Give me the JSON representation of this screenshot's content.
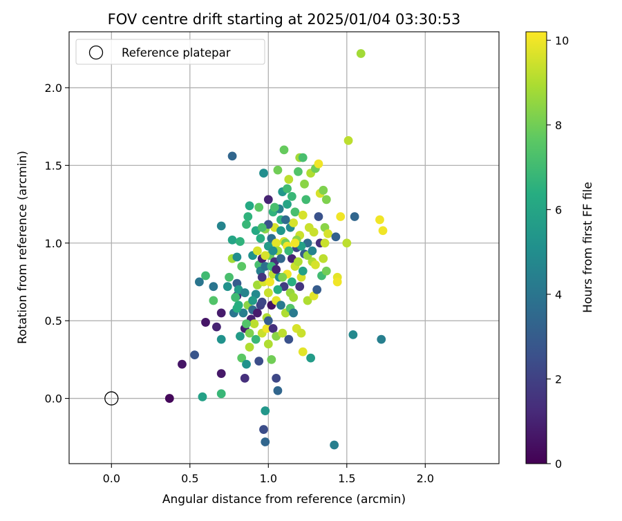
{
  "chart_data": {
    "type": "scatter",
    "title": "FOV centre drift starting at 2025/01/04 03:30:53",
    "xlabel": "Angular distance from reference (arcmin)",
    "ylabel": "Rotation from reference (arcmin)",
    "xlim": [
      -0.27,
      2.47
    ],
    "ylim": [
      -0.42,
      2.36
    ],
    "xticks": [
      0.0,
      0.5,
      1.0,
      1.5,
      2.0
    ],
    "xtick_labels": [
      "0.0",
      "0.5",
      "1.0",
      "1.5",
      "2.0"
    ],
    "yticks": [
      0.0,
      0.5,
      1.0,
      1.5,
      2.0
    ],
    "ytick_labels": [
      "0.0",
      "0.5",
      "1.0",
      "1.5",
      "2.0"
    ],
    "grid": true,
    "legend": {
      "placement": "top-left",
      "entries": [
        "Reference platepar"
      ]
    },
    "reference_point": {
      "name": "Reference platepar",
      "x": 0.0,
      "y": 0.0
    },
    "colorbar": {
      "label": "Hours from first FF file",
      "min": 0,
      "max": 10.2,
      "colormap": "viridis",
      "ticks": [
        0,
        2,
        4,
        6,
        8,
        10
      ],
      "tick_labels": [
        "0",
        "2",
        "4",
        "6",
        "8",
        "10"
      ]
    },
    "points": [
      [
        0.37,
        0.0,
        0.2
      ],
      [
        0.45,
        0.22,
        0.6
      ],
      [
        0.53,
        0.28,
        2.7
      ],
      [
        0.6,
        0.49,
        0.6
      ],
      [
        0.67,
        0.46,
        1.0
      ],
      [
        0.7,
        0.55,
        0.8
      ],
      [
        0.7,
        0.16,
        0.7
      ],
      [
        0.58,
        0.01,
        5.8
      ],
      [
        0.7,
        0.03,
        6.8
      ],
      [
        0.56,
        0.75,
        4.0
      ],
      [
        0.6,
        0.79,
        7.0
      ],
      [
        0.65,
        0.63,
        7.4
      ],
      [
        0.65,
        0.72,
        4.0
      ],
      [
        0.7,
        1.11,
        4.6
      ],
      [
        0.7,
        0.38,
        5.2
      ],
      [
        0.74,
        0.72,
        5.2
      ],
      [
        0.75,
        0.78,
        7.2
      ],
      [
        0.77,
        0.9,
        8.8
      ],
      [
        0.77,
        1.56,
        3.4
      ],
      [
        0.77,
        1.02,
        6.0
      ],
      [
        0.78,
        0.55,
        4.0
      ],
      [
        0.8,
        0.91,
        5.0
      ],
      [
        0.8,
        0.66,
        1.4
      ],
      [
        0.8,
        0.74,
        3.0
      ],
      [
        0.81,
        0.7,
        5.6
      ],
      [
        0.81,
        0.6,
        6.4
      ],
      [
        0.82,
        1.01,
        6.6
      ],
      [
        0.82,
        0.4,
        5.6
      ],
      [
        0.83,
        0.26,
        7.6
      ],
      [
        0.84,
        0.55,
        4.4
      ],
      [
        0.85,
        0.13,
        1.4
      ],
      [
        0.85,
        0.45,
        0.9
      ],
      [
        0.86,
        1.12,
        6.8
      ],
      [
        0.86,
        0.22,
        5.2
      ],
      [
        0.87,
        1.17,
        6.6
      ],
      [
        0.87,
        0.6,
        8.4
      ],
      [
        0.88,
        1.24,
        6.2
      ],
      [
        0.88,
        0.42,
        8.2
      ],
      [
        0.88,
        0.33,
        9.0
      ],
      [
        0.89,
        0.51,
        1.0
      ],
      [
        0.9,
        0.92,
        5.2
      ],
      [
        0.9,
        0.57,
        3.6
      ],
      [
        0.91,
        0.48,
        9.2
      ],
      [
        0.92,
        1.08,
        6.2
      ],
      [
        0.92,
        0.67,
        4.8
      ],
      [
        0.93,
        0.55,
        0.8
      ],
      [
        0.93,
        0.73,
        8.8
      ],
      [
        0.94,
        1.23,
        7.6
      ],
      [
        0.94,
        0.24,
        2.4
      ],
      [
        0.94,
        0.86,
        7.2
      ],
      [
        0.95,
        0.6,
        2.0
      ],
      [
        0.95,
        0.82,
        4.4
      ],
      [
        0.96,
        0.9,
        0.9
      ],
      [
        0.96,
        0.62,
        2.2
      ],
      [
        0.96,
        0.42,
        9.4
      ],
      [
        0.97,
        1.45,
        5.0
      ],
      [
        0.97,
        0.75,
        9.6
      ],
      [
        0.97,
        -0.2,
        2.4
      ],
      [
        0.98,
        -0.08,
        5.4
      ],
      [
        0.98,
        -0.28,
        3.4
      ],
      [
        0.98,
        1.09,
        8.4
      ],
      [
        0.98,
        0.85,
        3.8
      ],
      [
        0.99,
        0.52,
        9.0
      ],
      [
        0.99,
        0.45,
        10.0
      ],
      [
        1.0,
        1.28,
        1.0
      ],
      [
        1.0,
        0.98,
        5.6
      ],
      [
        1.0,
        0.68,
        9.4
      ],
      [
        1.0,
        0.35,
        9.0
      ],
      [
        1.01,
        0.75,
        10.0
      ],
      [
        1.01,
        0.92,
        7.8
      ],
      [
        1.02,
        1.03,
        3.8
      ],
      [
        1.02,
        0.6,
        0.5
      ],
      [
        1.02,
        0.25,
        8.0
      ],
      [
        1.03,
        1.2,
        6.6
      ],
      [
        1.03,
        0.8,
        9.2
      ],
      [
        1.03,
        0.45,
        1.4
      ],
      [
        1.04,
        0.88,
        1.4
      ],
      [
        1.04,
        1.1,
        9.6
      ],
      [
        1.05,
        1.0,
        9.8
      ],
      [
        1.05,
        0.63,
        9.8
      ],
      [
        1.05,
        0.4,
        8.4
      ],
      [
        1.05,
        0.13,
        2.2
      ],
      [
        1.06,
        1.47,
        8.0
      ],
      [
        1.06,
        0.95,
        8.8
      ],
      [
        1.06,
        0.05,
        3.4
      ],
      [
        1.07,
        1.22,
        4.4
      ],
      [
        1.07,
        0.78,
        5.0
      ],
      [
        1.08,
        1.15,
        6.6
      ],
      [
        1.08,
        0.9,
        3.4
      ],
      [
        1.09,
        1.33,
        5.4
      ],
      [
        1.09,
        0.42,
        9.2
      ],
      [
        1.1,
        1.6,
        7.8
      ],
      [
        1.1,
        1.01,
        9.6
      ],
      [
        1.1,
        0.72,
        1.8
      ],
      [
        1.11,
        1.0,
        8.0
      ],
      [
        1.11,
        0.55,
        9.0
      ],
      [
        1.12,
        1.35,
        7.0
      ],
      [
        1.12,
        0.98,
        10.0
      ],
      [
        1.12,
        0.8,
        10.0
      ],
      [
        1.13,
        1.41,
        9.2
      ],
      [
        1.13,
        0.38,
        2.6
      ],
      [
        1.14,
        1.1,
        4.8
      ],
      [
        1.14,
        0.68,
        8.6
      ],
      [
        1.15,
        1.3,
        6.8
      ],
      [
        1.15,
        0.9,
        1.0
      ],
      [
        1.16,
        1.13,
        9.6
      ],
      [
        1.16,
        0.65,
        8.8
      ],
      [
        1.17,
        1.2,
        7.2
      ],
      [
        1.17,
        0.85,
        9.4
      ],
      [
        1.18,
        0.97,
        2.2
      ],
      [
        1.18,
        0.45,
        9.6
      ],
      [
        1.19,
        1.46,
        7.4
      ],
      [
        1.19,
        0.88,
        9.0
      ],
      [
        1.2,
        1.55,
        8.8
      ],
      [
        1.2,
        1.05,
        9.4
      ],
      [
        1.2,
        0.72,
        1.6
      ],
      [
        1.21,
        0.78,
        9.6
      ],
      [
        1.21,
        0.42,
        9.4
      ],
      [
        1.22,
        1.55,
        7.2
      ],
      [
        1.22,
        1.18,
        9.6
      ],
      [
        1.22,
        0.3,
        9.8
      ],
      [
        1.23,
        1.38,
        8.4
      ],
      [
        1.23,
        0.93,
        3.0
      ],
      [
        1.24,
        1.28,
        7.0
      ],
      [
        1.25,
        1.0,
        3.6
      ],
      [
        1.25,
        0.63,
        9.0
      ],
      [
        1.26,
        1.1,
        9.4
      ],
      [
        1.27,
        1.45,
        9.0
      ],
      [
        1.27,
        0.26,
        5.6
      ],
      [
        1.28,
        0.88,
        9.0
      ],
      [
        1.29,
        1.07,
        9.4
      ],
      [
        1.29,
        0.66,
        9.8
      ],
      [
        1.3,
        1.48,
        8.0
      ],
      [
        1.3,
        0.86,
        9.6
      ],
      [
        1.31,
        0.7,
        3.0
      ],
      [
        1.32,
        1.51,
        10.0
      ],
      [
        1.32,
        1.17,
        2.6
      ],
      [
        1.33,
        1.32,
        9.6
      ],
      [
        1.33,
        1.0,
        1.4
      ],
      [
        1.34,
        0.79,
        7.0
      ],
      [
        1.35,
        1.34,
        8.2
      ],
      [
        1.35,
        0.9,
        9.2
      ],
      [
        1.36,
        1.1,
        8.4
      ],
      [
        1.36,
        1.0,
        9.4
      ],
      [
        1.37,
        1.28,
        8.2
      ],
      [
        1.37,
        0.82,
        8.0
      ],
      [
        1.38,
        1.06,
        9.6
      ],
      [
        1.42,
        -0.3,
        4.4
      ],
      [
        1.43,
        1.04,
        3.2
      ],
      [
        1.44,
        0.78,
        9.8
      ],
      [
        1.44,
        0.75,
        10.0
      ],
      [
        1.46,
        1.17,
        10.0
      ],
      [
        1.5,
        1.0,
        9.2
      ],
      [
        1.51,
        1.66,
        9.2
      ],
      [
        1.54,
        0.41,
        4.8
      ],
      [
        1.55,
        1.17,
        3.4
      ],
      [
        1.59,
        2.22,
        8.8
      ],
      [
        1.71,
        1.15,
        10.0
      ],
      [
        1.72,
        0.38,
        4.4
      ],
      [
        1.73,
        1.08,
        10.0
      ],
      [
        0.83,
        0.85,
        7.6
      ],
      [
        0.9,
        0.63,
        5.6
      ],
      [
        0.95,
        1.03,
        6.4
      ],
      [
        1.0,
        1.12,
        2.6
      ],
      [
        1.04,
        1.23,
        7.2
      ],
      [
        1.08,
        1.08,
        5.4
      ],
      [
        1.12,
        1.25,
        6.0
      ],
      [
        1.06,
        0.7,
        6.4
      ],
      [
        1.14,
        0.58,
        7.4
      ],
      [
        0.86,
        0.48,
        7.4
      ],
      [
        0.92,
        0.38,
        6.8
      ],
      [
        1.18,
        1.02,
        8.4
      ],
      [
        1.02,
        0.85,
        6.8
      ],
      [
        0.96,
        1.1,
        7.2
      ],
      [
        1.09,
        0.78,
        8.2
      ],
      [
        1.15,
        0.75,
        6.4
      ],
      [
        0.85,
        0.68,
        4.6
      ],
      [
        1.0,
        0.5,
        3.0
      ],
      [
        1.13,
        0.95,
        6.8
      ],
      [
        1.25,
        0.92,
        8.6
      ],
      [
        0.79,
        0.65,
        7.0
      ],
      [
        1.08,
        0.6,
        4.2
      ],
      [
        0.96,
        0.78,
        1.6
      ],
      [
        1.11,
        1.15,
        3.6
      ],
      [
        1.21,
        0.98,
        5.8
      ],
      [
        1.28,
        0.95,
        4.6
      ],
      [
        0.98,
        0.92,
        9.6
      ],
      [
        1.16,
        0.55,
        4.2
      ],
      [
        0.8,
        0.58,
        6.4
      ],
      [
        1.05,
        0.83,
        1.0
      ],
      [
        1.22,
        0.82,
        5.8
      ],
      [
        1.03,
        0.95,
        5.0
      ],
      [
        0.93,
        0.95,
        9.6
      ],
      [
        1.17,
        1.0,
        10.0
      ]
    ]
  }
}
